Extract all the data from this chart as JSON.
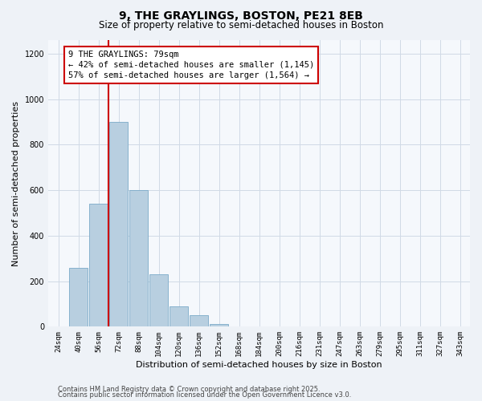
{
  "title1": "9, THE GRAYLINGS, BOSTON, PE21 8EB",
  "title2": "Size of property relative to semi-detached houses in Boston",
  "xlabel": "Distribution of semi-detached houses by size in Boston",
  "ylabel": "Number of semi-detached properties",
  "bar_color": "#b8cfe0",
  "bar_edge_color": "#7aaac8",
  "bins": [
    "24sqm",
    "40sqm",
    "56sqm",
    "72sqm",
    "88sqm",
    "104sqm",
    "120sqm",
    "136sqm",
    "152sqm",
    "168sqm",
    "184sqm",
    "200sqm",
    "216sqm",
    "231sqm",
    "247sqm",
    "263sqm",
    "279sqm",
    "295sqm",
    "311sqm",
    "327sqm",
    "343sqm"
  ],
  "values": [
    2,
    260,
    540,
    900,
    600,
    230,
    90,
    50,
    10,
    0,
    0,
    0,
    0,
    0,
    0,
    0,
    0,
    0,
    0,
    0,
    0
  ],
  "ylim": [
    0,
    1260
  ],
  "yticks": [
    0,
    200,
    400,
    600,
    800,
    1000,
    1200
  ],
  "vline_bin_index": 3,
  "annotation_title": "9 THE GRAYLINGS: 79sqm",
  "annotation_line1": "← 42% of semi-detached houses are smaller (1,145)",
  "annotation_line2": "57% of semi-detached houses are larger (1,564) →",
  "footer1": "Contains HM Land Registry data © Crown copyright and database right 2025.",
  "footer2": "Contains public sector information licensed under the Open Government Licence v3.0.",
  "bg_color": "#eef2f7",
  "plot_bg_color": "#f5f8fc",
  "grid_color": "#d0dae6",
  "vline_color": "#cc0000",
  "annotation_box_color": "#cc0000",
  "title_fontsize": 10,
  "subtitle_fontsize": 8.5,
  "tick_fontsize": 6.5,
  "label_fontsize": 8,
  "annotation_fontsize": 7.5,
  "footer_fontsize": 6
}
